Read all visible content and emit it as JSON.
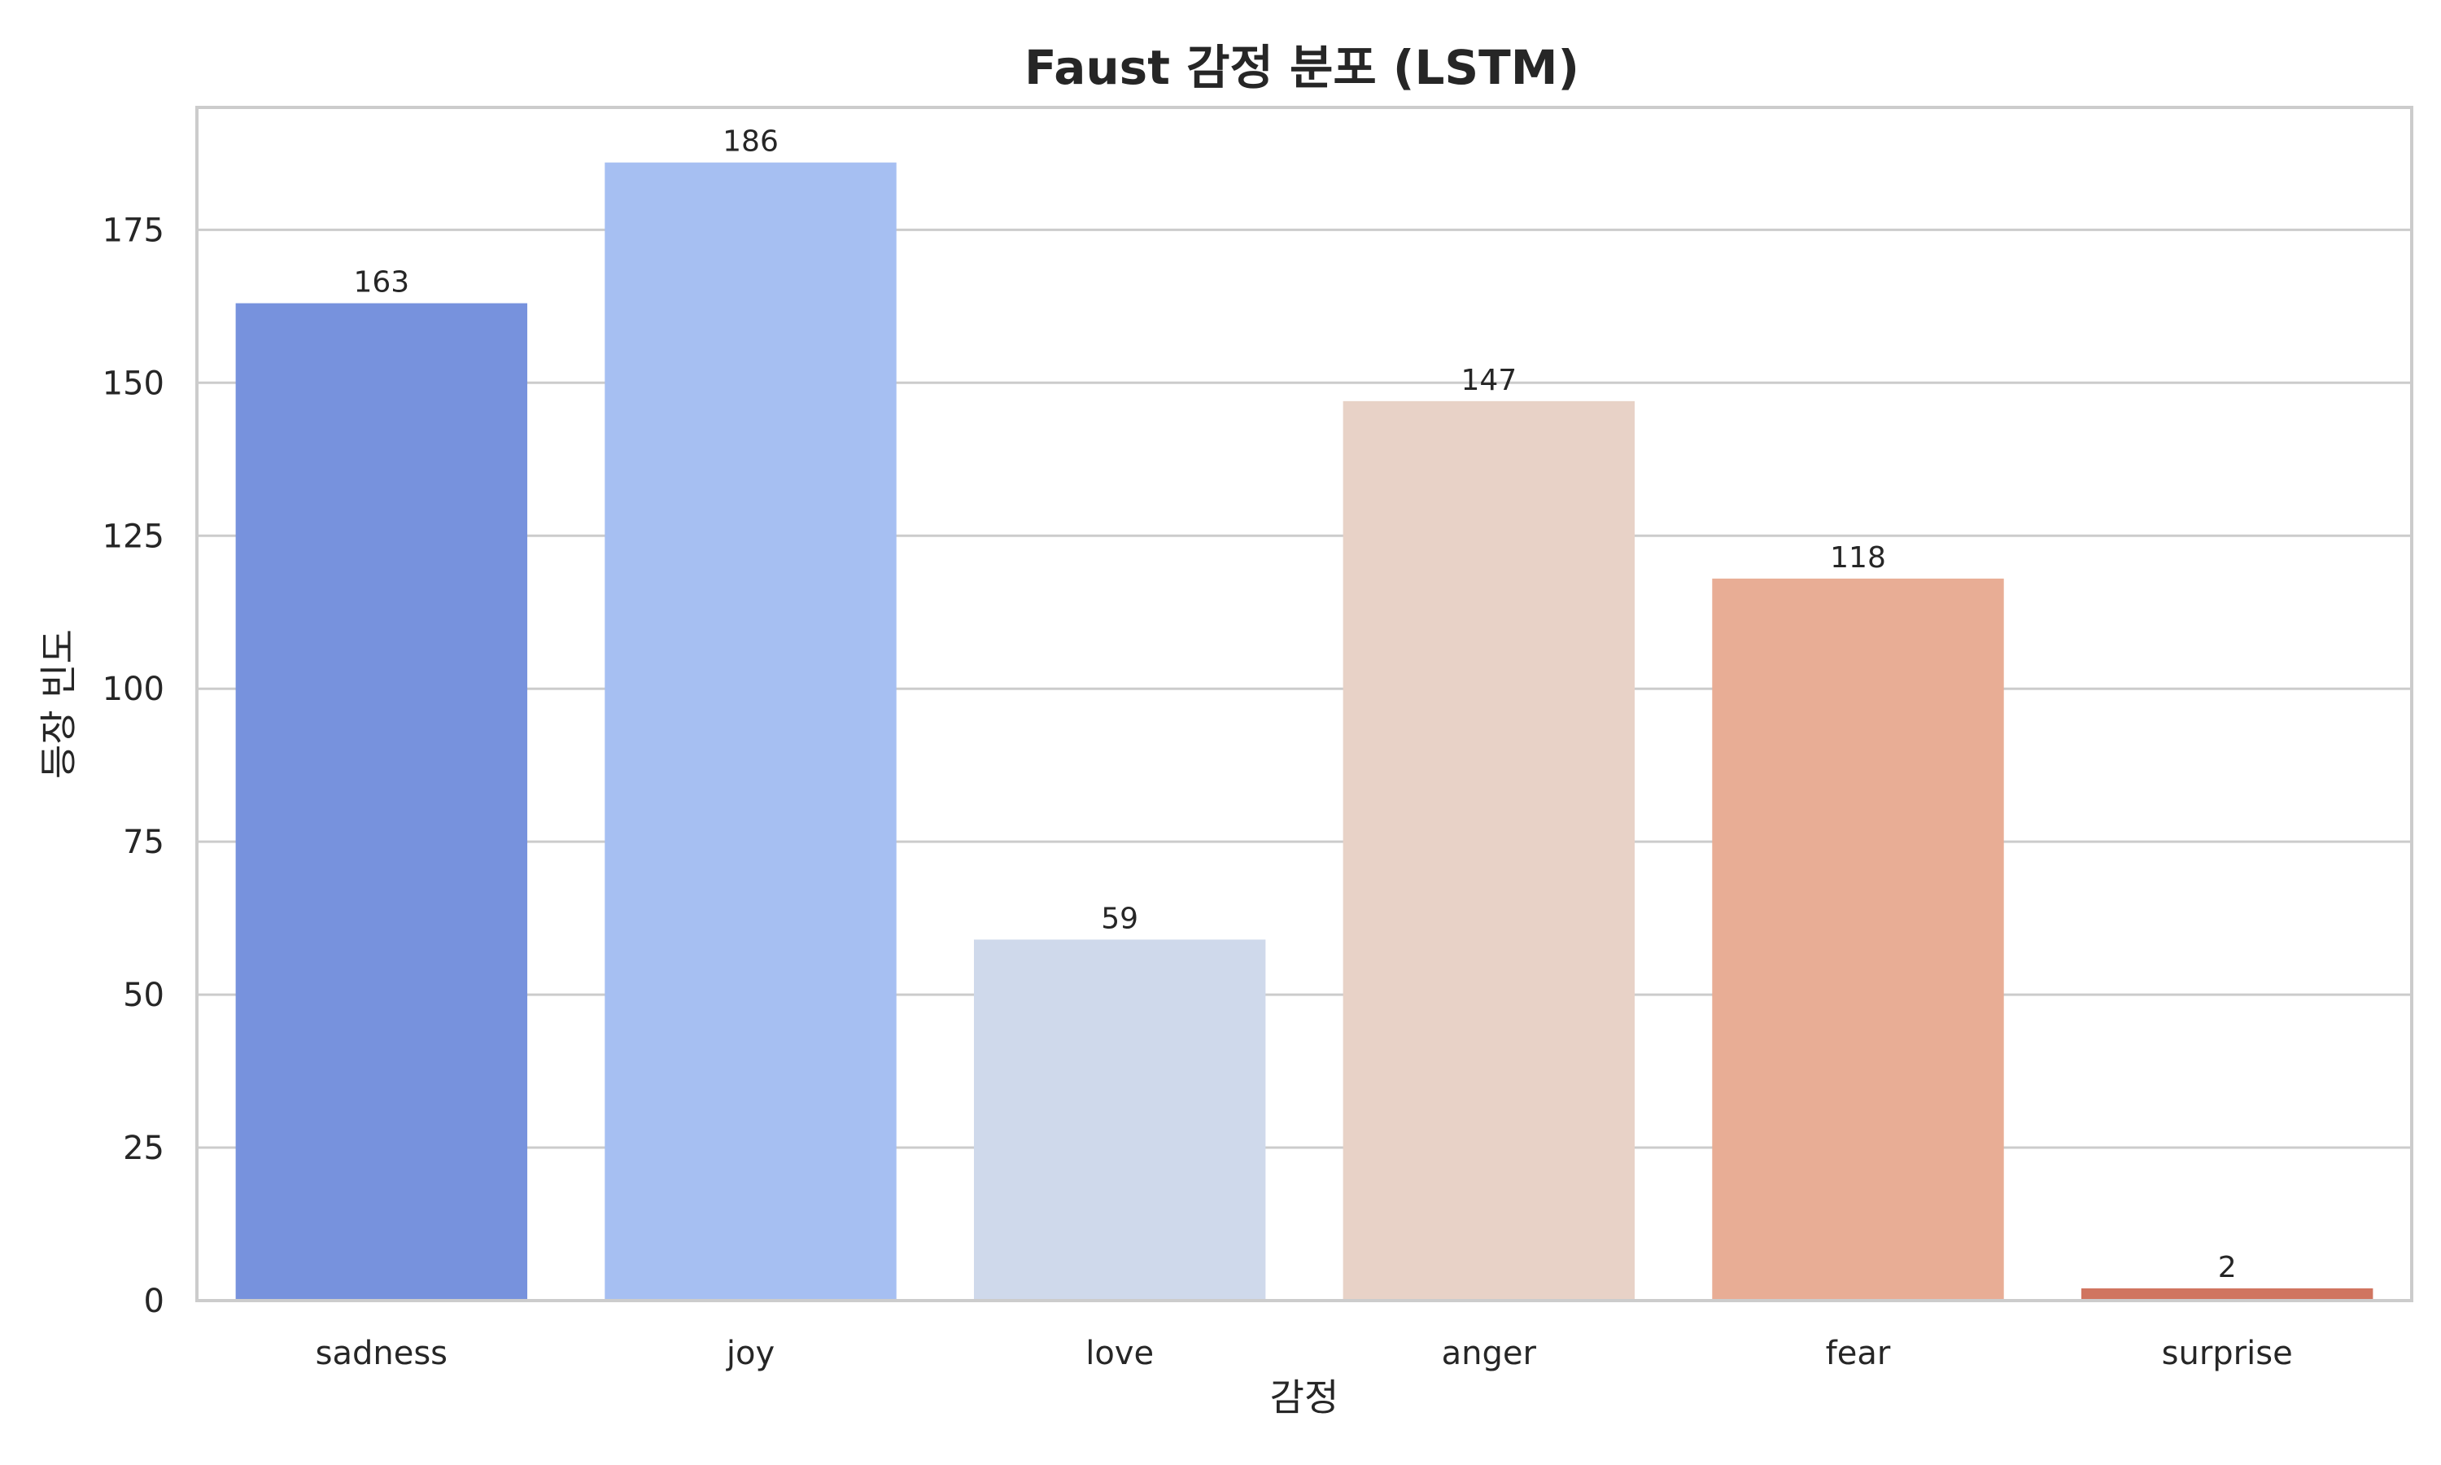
{
  "chart_data": {
    "type": "bar",
    "title": "Faust 감정 분포 (LSTM)",
    "xlabel": "감정",
    "ylabel": "등장 빈도",
    "categories": [
      "sadness",
      "joy",
      "love",
      "anger",
      "fear",
      "surprise"
    ],
    "values": [
      163,
      186,
      59,
      147,
      118,
      2
    ],
    "data_labels": [
      "163",
      "186",
      "59",
      "147",
      "118",
      "2"
    ],
    "colors": [
      "#7792dd",
      "#a6bff2",
      "#cfd9eb",
      "#e8d2c7",
      "#e8ad95",
      "#d07560"
    ],
    "ylim": [
      0,
      195
    ],
    "yticks": [
      0,
      25,
      50,
      75,
      100,
      125,
      150,
      175
    ],
    "ytick_labels": [
      "0",
      "25",
      "50",
      "75",
      "100",
      "125",
      "150",
      "175"
    ],
    "grid": "horizontal",
    "legend": "none"
  }
}
